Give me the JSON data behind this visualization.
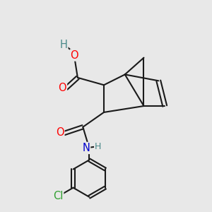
{
  "bg_color": "#e8e8e8",
  "bond_color": "#1a1a1a",
  "bond_width": 1.5,
  "atom_colors": {
    "O": "#ff0000",
    "N": "#0000cc",
    "Cl": "#2e9e2e",
    "H": "#4a8a8a",
    "C": "#1a1a1a"
  },
  "font_size_atom": 10.5,
  "font_size_small": 9.0
}
